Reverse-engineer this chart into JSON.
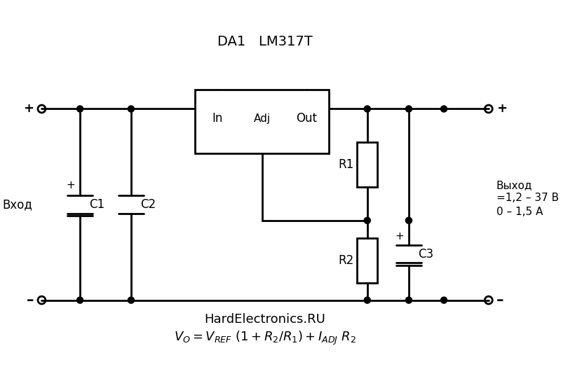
{
  "title": "DA1   LM317T",
  "website": "HardElectronics.RU",
  "formula": "V$_O$ = V$_{REF}$ (1 + R$_2$/R$_1$) + I$_{ADJ}$ R$_2$",
  "bg_color": "#ffffff",
  "line_color": "#000000",
  "line_width": 2.0,
  "fig_width": 8.0,
  "fig_height": 5.44,
  "dpi": 100
}
